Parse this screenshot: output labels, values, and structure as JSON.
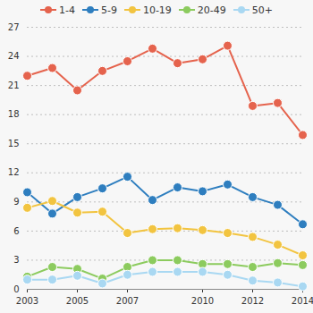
{
  "chart_data": {
    "type": "line",
    "x": [
      2003,
      2004,
      2005,
      2006,
      2007,
      2008,
      2009,
      2010,
      2011,
      2012,
      2013,
      2014
    ],
    "xlim": [
      2003,
      2014
    ],
    "xticks": [
      2003,
      2005,
      2007,
      2010,
      2012,
      2014
    ],
    "ylim": [
      0,
      27
    ],
    "yticks": [
      0,
      3,
      6,
      9,
      12,
      15,
      18,
      21,
      24,
      27
    ],
    "grid": true,
    "legend": "top",
    "marker": "circle",
    "series": [
      {
        "name": "1-4",
        "color": "#e5634d",
        "values": [
          22.0,
          22.8,
          20.5,
          22.5,
          23.5,
          24.8,
          23.3,
          23.7,
          25.1,
          18.9,
          19.2,
          15.9
        ]
      },
      {
        "name": "5-9",
        "color": "#2e7ebf",
        "values": [
          10.0,
          7.8,
          9.5,
          10.4,
          11.6,
          9.2,
          10.5,
          10.1,
          10.8,
          9.5,
          8.7,
          6.7
        ]
      },
      {
        "name": "10-19",
        "color": "#f2c440",
        "values": [
          8.4,
          9.1,
          7.9,
          8.0,
          5.8,
          6.2,
          6.3,
          6.1,
          5.8,
          5.4,
          4.6,
          3.5
        ]
      },
      {
        "name": "20-49",
        "color": "#8ccb5e",
        "values": [
          1.3,
          2.3,
          2.1,
          1.1,
          2.3,
          3.0,
          3.0,
          2.6,
          2.6,
          2.3,
          2.7,
          2.5
        ]
      },
      {
        "name": "50+",
        "color": "#a9d8f2",
        "values": [
          1.0,
          1.0,
          1.4,
          0.6,
          1.5,
          1.8,
          1.8,
          1.8,
          1.5,
          0.9,
          0.7,
          0.3
        ]
      }
    ]
  }
}
